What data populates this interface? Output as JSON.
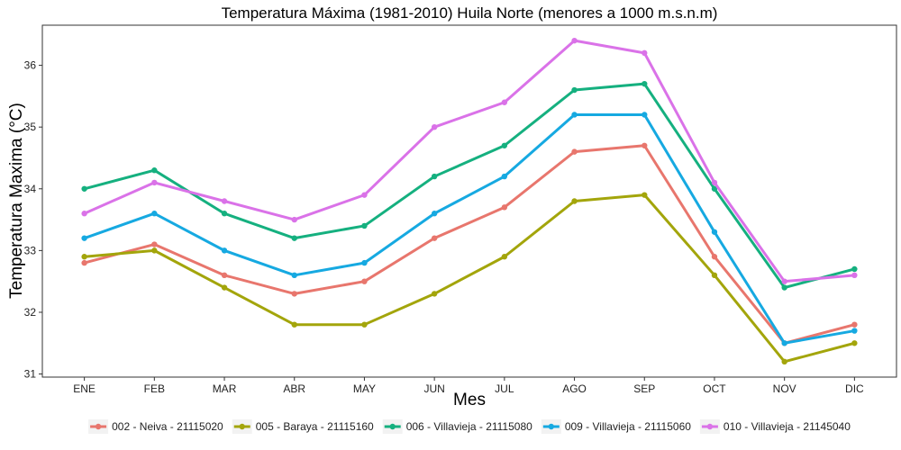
{
  "chart_data": {
    "type": "line",
    "title": "Temperatura Máxima (1981-2010) Huila Norte (menores a 1000 m.s.n.m)",
    "xlabel": "Mes",
    "ylabel": "Temperatura Maxima (°C)",
    "categories": [
      "ENE",
      "FEB",
      "MAR",
      "ABR",
      "MAY",
      "JUN",
      "JUL",
      "AGO",
      "SEP",
      "OCT",
      "NOV",
      "DIC"
    ],
    "ylim": [
      30.95,
      36.65
    ],
    "yticks": [
      31,
      32,
      33,
      34,
      35,
      36
    ],
    "grid": false,
    "legend_position": "bottom",
    "series": [
      {
        "name": "002 - Neiva - 21115020",
        "color": "#E8766D",
        "values": [
          32.8,
          33.1,
          32.6,
          32.3,
          32.5,
          33.2,
          33.7,
          34.6,
          34.7,
          32.9,
          31.5,
          31.8
        ]
      },
      {
        "name": "005 - Baraya - 21115160",
        "color": "#A3A50B",
        "values": [
          32.9,
          33.0,
          32.4,
          31.8,
          31.8,
          32.3,
          32.9,
          33.8,
          33.9,
          32.6,
          31.2,
          31.5
        ]
      },
      {
        "name": "006 - Villavieja - 21115080",
        "color": "#15B07F",
        "values": [
          34.0,
          34.3,
          33.6,
          33.2,
          33.4,
          34.2,
          34.7,
          35.6,
          35.7,
          34.0,
          32.4,
          32.7
        ]
      },
      {
        "name": "009 - Villavieja - 21115060",
        "color": "#16A9E1",
        "values": [
          33.2,
          33.6,
          33.0,
          32.6,
          32.8,
          33.6,
          34.2,
          35.2,
          35.2,
          33.3,
          31.5,
          31.7
        ]
      },
      {
        "name": "010 - Villavieja - 21145040",
        "color": "#DA72E8",
        "values": [
          33.6,
          34.1,
          33.8,
          33.5,
          33.9,
          35.0,
          35.4,
          36.4,
          36.2,
          34.1,
          32.5,
          32.6
        ]
      }
    ]
  }
}
